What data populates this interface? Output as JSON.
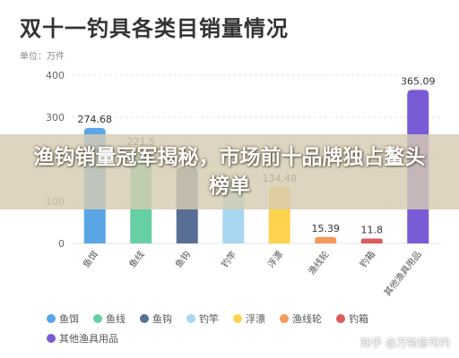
{
  "chart_data": {
    "type": "bar",
    "title": "双十一钓具各类目销量情况",
    "unit_label": "单位：万件",
    "categories": [
      "鱼饵",
      "鱼线",
      "鱼钩",
      "钓竿",
      "浮漂",
      "渔线轮",
      "钓箱",
      "其他渔具用品"
    ],
    "values": [
      274.68,
      221.5,
      180.0,
      150.0,
      134.48,
      15.39,
      11.8,
      365.09
    ],
    "data_labels": [
      "274.68",
      "221.5",
      "",
      "",
      "134.48",
      "15.39",
      "11.8",
      "365.09"
    ],
    "colors": [
      "#5aa5e6",
      "#67cfa4",
      "#5a6f96",
      "#a8d7f2",
      "#ffd34e",
      "#f29a5b",
      "#dc5b5b",
      "#7a5bd6"
    ],
    "ylim": [
      0,
      400
    ],
    "yticks": [
      "0",
      "100",
      "200",
      "300",
      "400"
    ],
    "grid": true,
    "legend_position": "bottom"
  },
  "banner": {
    "text": "渔钩销量冠军揭秘，市场前十品牌独占鳌头榜单"
  },
  "watermark": "知乎 @万物皆可约"
}
